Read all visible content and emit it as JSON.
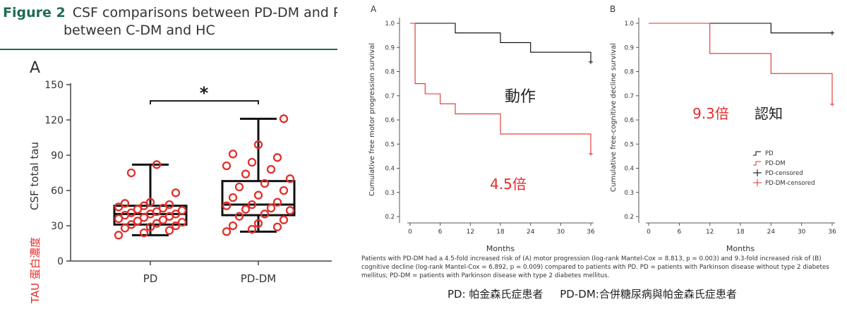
{
  "left_figure": {
    "figure_label": "Figure 2",
    "title_line1": "CSF comparisons between PD-DM and PD and",
    "title_line2": "between C-DM and HC",
    "panel_label": "A",
    "significance": "*",
    "ylabel": "CSF total tau",
    "ylabel_annotation": "TAU 蛋白濃度"
  },
  "km_figure": {
    "caption": "Patients with PD-DM had a 4.5-fold increased risk of (A) motor progression (log-rank Mantel-Cox = 8.813, p = 0.003) and 9.3-fold increased risk of (B) cognitive decline (log-rank Mantel-Cox = 6.892, p = 0.009) compared to patients with PD. PD = patients with Parkinson disease without type 2 diabetes mellitus; PD-DM = patients with Parkinson disease with type 2 diabetes mellitus.",
    "annotation_A_label": "動作",
    "annotation_A_ratio": "4.5倍",
    "annotation_B_label": "認知",
    "annotation_B_ratio": "9.3倍"
  },
  "footer_note": "PD: 帕金森氏症患者     PD-DM:合併糖尿病與帕金森氏症患者",
  "colors": {
    "teal": "#1f6b54",
    "pd": "#000000",
    "pd_dm": "#e0302a",
    "axis": "#333333",
    "annotation_red": "#e52b2b"
  },
  "chart_data": [
    {
      "type": "box",
      "panel": "A",
      "categories": [
        "PD",
        "PD-DM"
      ],
      "ylabel": "CSF total tau",
      "ylim": [
        0,
        150
      ],
      "yticks": [
        0,
        30,
        60,
        90,
        120,
        150
      ],
      "boxes": [
        {
          "category": "PD",
          "min": 22,
          "q1": 31,
          "median": 40,
          "q3": 47,
          "max": 82,
          "points": [
            22,
            24,
            26,
            28,
            29,
            30,
            31,
            32,
            33,
            34,
            35,
            36,
            37,
            38,
            39,
            40,
            40,
            41,
            42,
            43,
            44,
            45,
            46,
            47,
            48,
            49,
            50,
            58,
            75,
            82
          ]
        },
        {
          "category": "PD-DM",
          "min": 25,
          "q1": 39,
          "median": 48,
          "q3": 68,
          "max": 121,
          "points": [
            25,
            27,
            29,
            30,
            32,
            35,
            38,
            40,
            43,
            44,
            45,
            47,
            48,
            50,
            54,
            56,
            60,
            63,
            66,
            70,
            74,
            78,
            81,
            84,
            88,
            91,
            99,
            121
          ]
        }
      ]
    },
    {
      "type": "line",
      "panel": "A",
      "step": true,
      "xlabel": "Months",
      "ylabel": "Cumulative free motor progression survival",
      "xlim": [
        0,
        36
      ],
      "ylim": [
        0.15,
        1.0
      ],
      "xticks": [
        0,
        6,
        12,
        18,
        24,
        30,
        36
      ],
      "yticks": [
        0.2,
        0.3,
        0.4,
        0.5,
        0.6,
        0.7,
        0.8,
        0.9,
        1.0
      ],
      "series": [
        {
          "name": "PD",
          "color": "#000000",
          "points": [
            [
              0,
              1.0
            ],
            [
              9,
              1.0
            ],
            [
              9,
              0.96
            ],
            [
              18,
              0.96
            ],
            [
              18,
              0.92
            ],
            [
              24,
              0.92
            ],
            [
              24,
              0.88
            ],
            [
              36,
              0.88
            ],
            [
              36,
              0.84
            ]
          ],
          "censored": [
            [
              36,
              0.84
            ]
          ]
        },
        {
          "name": "PD-DM",
          "color": "#e0302a",
          "points": [
            [
              0,
              1.0
            ],
            [
              1,
              1.0
            ],
            [
              1,
              0.75
            ],
            [
              3,
              0.75
            ],
            [
              3,
              0.708
            ],
            [
              6,
              0.708
            ],
            [
              6,
              0.667
            ],
            [
              9,
              0.667
            ],
            [
              9,
              0.625
            ],
            [
              18,
              0.625
            ],
            [
              18,
              0.542
            ],
            [
              36,
              0.542
            ],
            [
              36,
              0.46
            ]
          ],
          "censored": [
            [
              36,
              0.46
            ]
          ]
        }
      ]
    },
    {
      "type": "line",
      "panel": "B",
      "step": true,
      "xlabel": "Months",
      "ylabel": "Cumulative free-cognitive decline survival",
      "xlim": [
        0,
        36
      ],
      "ylim": [
        0.15,
        1.0
      ],
      "xticks": [
        0,
        6,
        12,
        18,
        24,
        30,
        36
      ],
      "yticks": [
        0.2,
        0.3,
        0.4,
        0.5,
        0.6,
        0.7,
        0.8,
        0.9,
        1.0
      ],
      "legend": [
        "PD",
        "PD-DM",
        "PD-censored",
        "PD-DM-censored"
      ],
      "series": [
        {
          "name": "PD",
          "color": "#000000",
          "points": [
            [
              0,
              1.0
            ],
            [
              24,
              1.0
            ],
            [
              24,
              0.96
            ],
            [
              36,
              0.96
            ]
          ],
          "censored": [
            [
              36,
              0.96
            ]
          ]
        },
        {
          "name": "PD-DM",
          "color": "#e0302a",
          "points": [
            [
              0,
              1.0
            ],
            [
              12,
              1.0
            ],
            [
              12,
              0.875
            ],
            [
              24,
              0.875
            ],
            [
              24,
              0.792
            ],
            [
              36,
              0.792
            ],
            [
              36,
              0.665
            ]
          ],
          "censored": [
            [
              36,
              0.665
            ]
          ]
        }
      ]
    }
  ]
}
